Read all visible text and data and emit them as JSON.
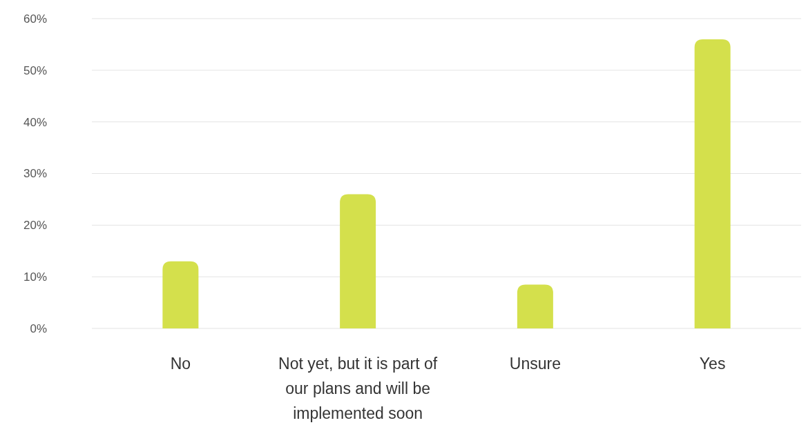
{
  "chart_data": {
    "type": "bar",
    "categories": [
      "No",
      "Not yet, but it is part of our plans and will be implemented soon",
      "Unsure",
      "Yes"
    ],
    "values": [
      13,
      26,
      8.5,
      56
    ],
    "color": "#d4e04c",
    "ylim": [
      0,
      60
    ],
    "yticks": [
      {
        "value": 0,
        "label": "0%"
      },
      {
        "value": 10,
        "label": "10%"
      },
      {
        "value": 20,
        "label": "20%"
      },
      {
        "value": 30,
        "label": "30%"
      },
      {
        "value": 40,
        "label": "40%"
      },
      {
        "value": 50,
        "label": "50%"
      },
      {
        "value": 60,
        "label": "60%"
      }
    ],
    "grid": "y"
  }
}
